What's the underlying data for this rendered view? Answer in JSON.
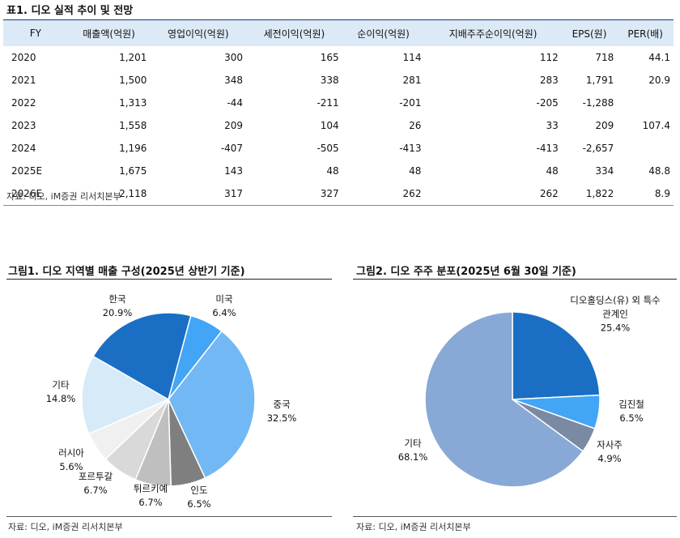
{
  "table_title": "표1. 디오 실적 추이 및 전망",
  "table": {
    "header": [
      "FY",
      "매출액(억원)",
      "영업이익(억원)",
      "세전이익(억원)",
      "순이익(억원)",
      "지배주주순이익(억원)",
      "EPS(원)",
      "PER(배)"
    ],
    "rows": [
      [
        "2020",
        "1,201",
        "300",
        "165",
        "114",
        "112",
        "718",
        "44.1"
      ],
      [
        "2021",
        "1,500",
        "348",
        "338",
        "281",
        "283",
        "1,791",
        "20.9"
      ],
      [
        "2022",
        "1,313",
        "-44",
        "-211",
        "-201",
        "-205",
        "-1,288",
        null
      ],
      [
        "2023",
        "1,558",
        "209",
        "104",
        "26",
        "33",
        "209",
        "107.4"
      ],
      [
        "2024",
        "1,196",
        "-407",
        "-505",
        "-413",
        "-413",
        "-2,657",
        null
      ],
      [
        "2025E",
        "1,675",
        "143",
        "48",
        "48",
        "48",
        "334",
        "48.8"
      ],
      [
        "2026E",
        "2,118",
        "317",
        "327",
        "262",
        "262",
        "1,822",
        "8.9"
      ]
    ]
  },
  "table_source": "자료: 디오, iM증권 리서치본부",
  "chart_data": [
    {
      "type": "pie",
      "title": "그림1. 디오 지역별 매출 구성(2025년 상반기 기준)",
      "categories": [
        "미국",
        "중국",
        "인도",
        "튀르키예",
        "포르투갈",
        "러시아",
        "기타",
        "한국"
      ],
      "values": [
        6.4,
        32.5,
        6.5,
        6.7,
        6.7,
        5.6,
        14.8,
        20.9
      ],
      "value_labels": [
        "6.4%",
        "32.5%",
        "6.5%",
        "6.7%",
        "6.7%",
        "5.6%",
        "14.8%",
        "20.9%"
      ],
      "colors": [
        "#42a5f5",
        "#72b8f5",
        "#7f7f7f",
        "#bfbfbf",
        "#d9d9d9",
        "#f0f0f0",
        "#d6eaf8",
        "#1a6fc4"
      ],
      "source": "자료: 디오, iM증권 리서치본부"
    },
    {
      "type": "pie",
      "title": "그림2.  디오 주주 분포(2025년 6월 30일 기준)",
      "categories": [
        "디오홀딩스(유) 외 특수관계인",
        "김진철",
        "자사주",
        "기타"
      ],
      "values": [
        25.4,
        6.5,
        4.9,
        68.1
      ],
      "value_labels": [
        "25.4%",
        "6.5%",
        "4.9%",
        "68.1%"
      ],
      "colors": [
        "#1a6fc4",
        "#42a5f5",
        "#7a8aa3",
        "#88a9d6"
      ],
      "source": "자료: 디오, iM증권 리서치본부"
    }
  ]
}
